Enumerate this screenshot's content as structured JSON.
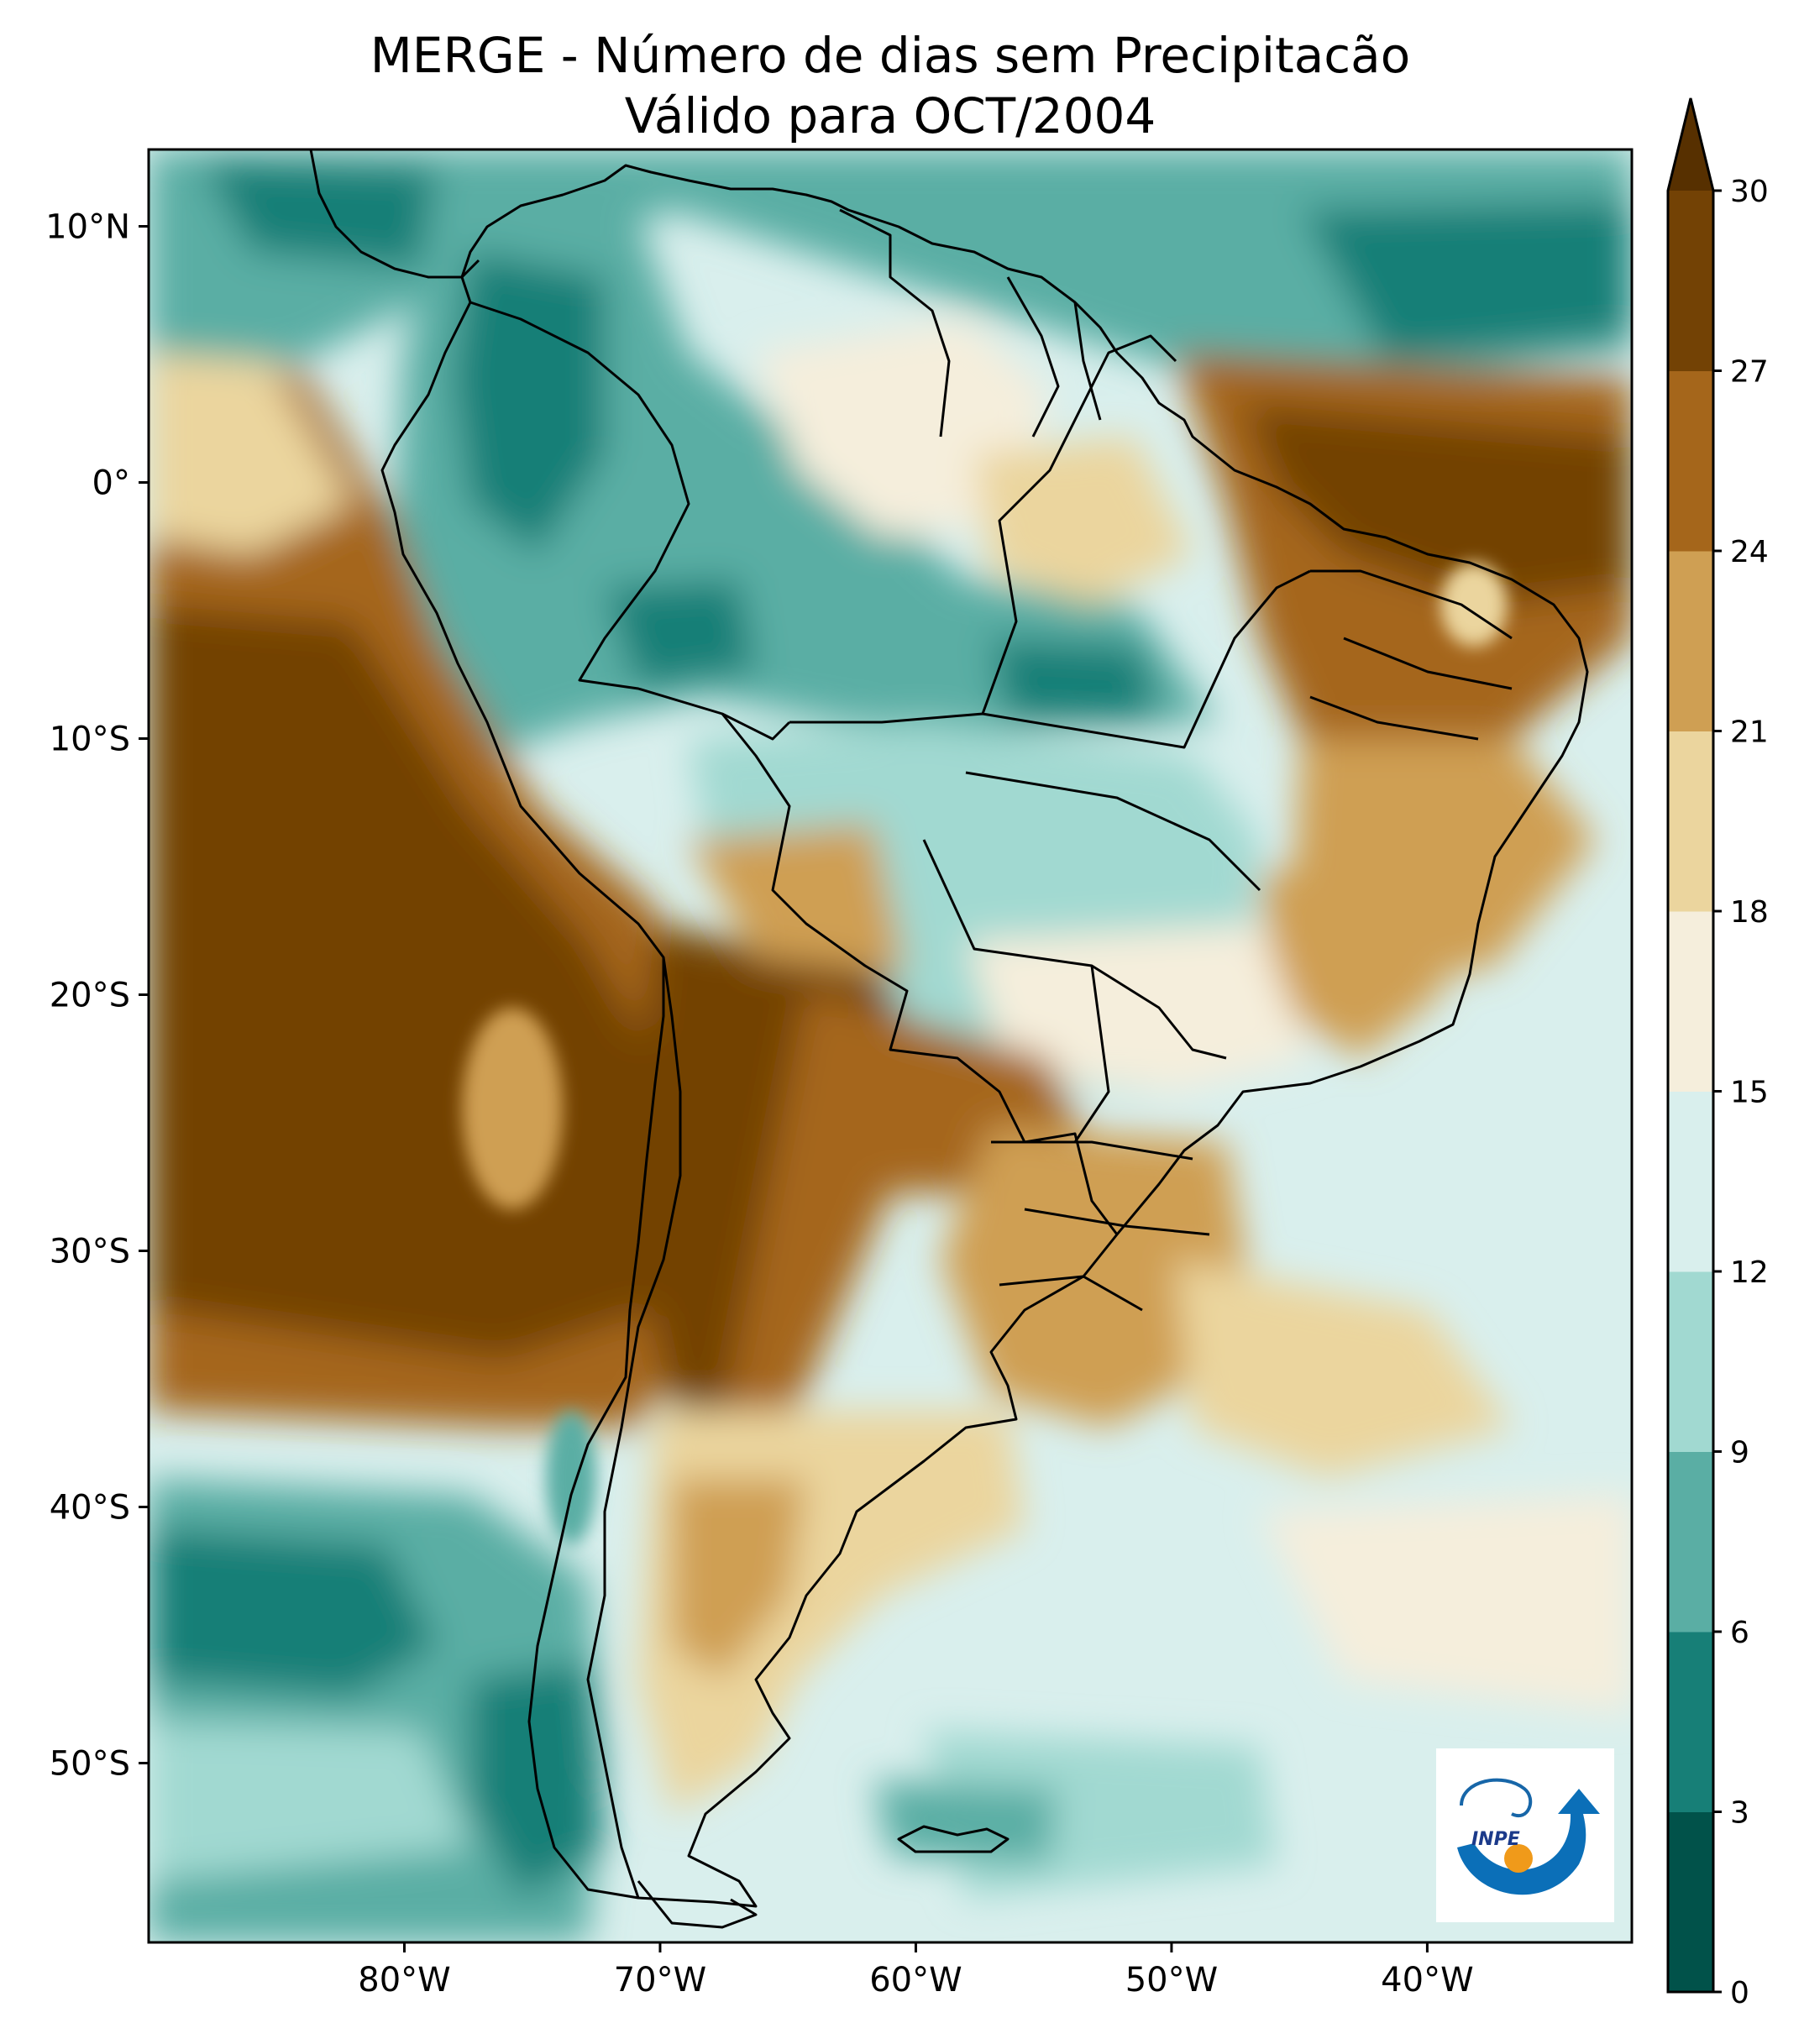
{
  "title": {
    "line1": "MERGE - Número de dias sem Precipitacão",
    "line2": "Válido para OCT/2004"
  },
  "map": {
    "lon_range": [
      -90,
      -32
    ],
    "lat_range": [
      -57,
      13
    ],
    "lon_ticks": [
      {
        "value": -80,
        "label": "80°W"
      },
      {
        "value": -70,
        "label": "70°W"
      },
      {
        "value": -60,
        "label": "60°W"
      },
      {
        "value": -50,
        "label": "50°W"
      },
      {
        "value": -40,
        "label": "40°W"
      }
    ],
    "lat_ticks": [
      {
        "value": 10,
        "label": "10°N"
      },
      {
        "value": 0,
        "label": "0°"
      },
      {
        "value": -10,
        "label": "10°S"
      },
      {
        "value": -20,
        "label": "20°S"
      },
      {
        "value": -30,
        "label": "30°S"
      },
      {
        "value": -40,
        "label": "40°S"
      },
      {
        "value": -50,
        "label": "50°S"
      }
    ]
  },
  "colorbar": {
    "levels": [
      0,
      3,
      6,
      9,
      12,
      15,
      18,
      21,
      24,
      27,
      30
    ],
    "labels": [
      "0",
      "3",
      "6",
      "9",
      "12",
      "15",
      "18",
      "21",
      "24",
      "27",
      "30"
    ],
    "colors": [
      "#01524a",
      "#177f77",
      "#5aaea4",
      "#a1d9d1",
      "#d9efed",
      "#f5eedc",
      "#ebd59e",
      "#cf9f53",
      "#a5661b",
      "#734205"
    ],
    "extend_color": "#573000"
  },
  "logo": {
    "text": "INPE"
  }
}
